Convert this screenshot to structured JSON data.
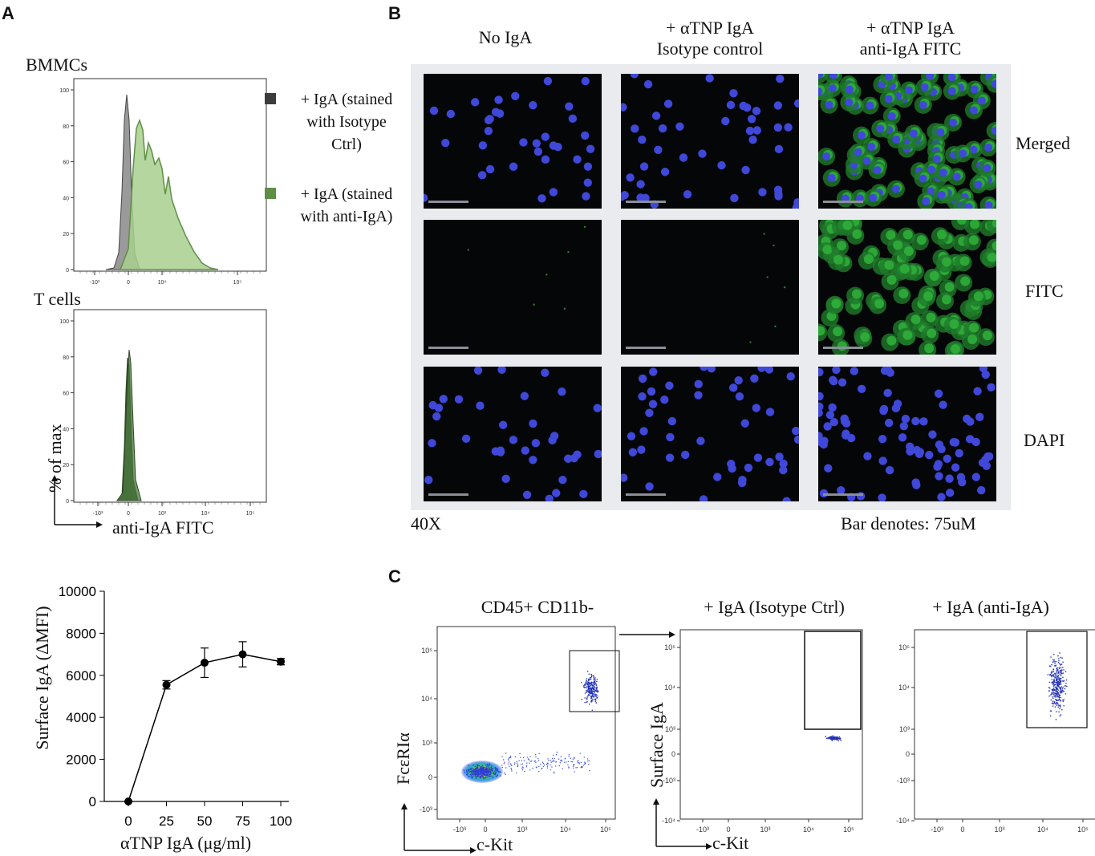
{
  "panelA": {
    "letter": "A",
    "bmmc_title": "BMMCs",
    "tcell_title": "T cells",
    "legend": [
      {
        "label": "+ IgA (stained with Isotype Ctrl)",
        "lines": [
          "+ IgA (stained",
          "with Isotype",
          "Ctrl)"
        ],
        "color": "#4a4a4a"
      },
      {
        "label": "+ IgA (stained with anti-IgA)",
        "lines": [
          "+ IgA (stained",
          "with anti-IgA)"
        ],
        "color": "#5f8f45"
      }
    ],
    "hist_yticks": [
      "100",
      "80",
      "60",
      "40",
      "20",
      "0"
    ],
    "hist_xticks_bmmc": [
      "-10³",
      "0",
      "10⁴",
      "10⁵"
    ],
    "hist_xticks_tcell": [
      "-10³",
      "0",
      "10³",
      "10⁴",
      "10⁵"
    ],
    "ylabel": "% of max",
    "xlabel": "anti-IgA FITC"
  },
  "panelB": {
    "letter": "B",
    "columns": [
      "No IgA",
      "+ αTNP IgA\nIsotype control",
      "+ αTNP IgA\nanti-IgA FITC"
    ],
    "col_lines": [
      [
        "No IgA"
      ],
      [
        "+ αTNP IgA",
        "Isotype control"
      ],
      [
        "+ αTNP IgA",
        "anti-IgA FITC"
      ]
    ],
    "rows": [
      "Merged",
      "FITC",
      "DAPI"
    ],
    "magnification": "40X",
    "scale_note": "Bar denotes: 75uM"
  },
  "panelC": {
    "letter": "C",
    "plots": [
      {
        "title": "CD45+ CD11b-",
        "ylabel": "FcεRIα",
        "xlabel": "c-Kit",
        "yticks": [
          "10⁵",
          "10⁴",
          "10³",
          "0",
          "-10³"
        ],
        "xticks": [
          "-10³",
          "0",
          "10³",
          "10⁴",
          "10⁵"
        ]
      },
      {
        "title": "+ IgA (Isotype Ctrl)",
        "ylabel": "Surface IgA",
        "xlabel": "c-Kit",
        "yticks": [
          "10⁵",
          "10⁴",
          "10³",
          "0",
          "-10³",
          "-10⁴"
        ],
        "xticks": [
          "-10³",
          "0",
          "10³",
          "10⁴",
          "10⁵"
        ]
      },
      {
        "title": "+ IgA (anti-IgA)",
        "ylabel": "",
        "xlabel": "",
        "yticks": [
          "10⁵",
          "10⁴",
          "10³",
          "0",
          "-10³",
          "-10⁴"
        ],
        "xticks": [
          "-10³",
          "0",
          "10³",
          "10⁴",
          "10⁵"
        ]
      }
    ]
  },
  "chart_data": {
    "type": "line",
    "xlabel": "αTNP IgA (μg/ml)",
    "ylabel": "Surface IgA (ΔMFI)",
    "x": [
      0,
      25,
      50,
      75,
      100
    ],
    "series": [
      {
        "values": [
          0,
          5550,
          6600,
          7000,
          6650
        ],
        "errors": [
          0,
          200,
          700,
          600,
          150
        ]
      }
    ],
    "xticks": [
      "0",
      "25",
      "50",
      "75",
      "100"
    ],
    "yticks": [
      "0",
      "2000",
      "4000",
      "6000",
      "8000",
      "10000"
    ],
    "ylim": [
      0,
      10000
    ],
    "grid": false,
    "color": "#000000"
  },
  "colors": {
    "dapi": "#3f48d8",
    "fitc": "#2fae3a",
    "isotype": "#8a8a8a",
    "antiIgA": "#a8cf8e"
  }
}
